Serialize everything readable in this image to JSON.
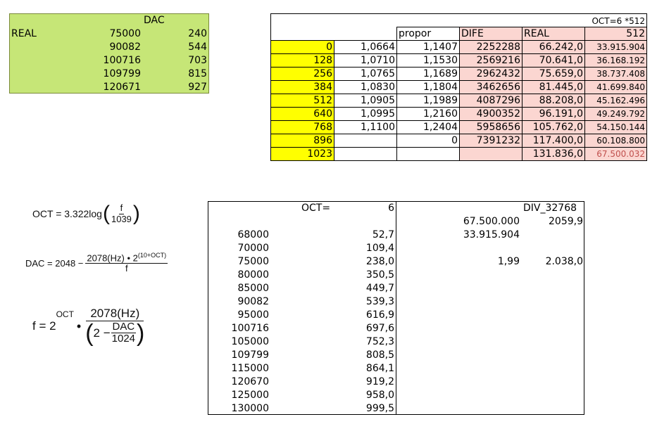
{
  "dac_table": {
    "header": "DAC",
    "row_label": "REAL",
    "rows": [
      {
        "hz": "75000",
        "dac": "240"
      },
      {
        "hz": "90082",
        "dac": "544"
      },
      {
        "hz": "100716",
        "dac": "703"
      },
      {
        "hz": "109799",
        "dac": "815"
      },
      {
        "hz": "120671",
        "dac": "927"
      }
    ]
  },
  "ratio_table": {
    "top_note": "OCT=6  *512",
    "headers": {
      "propor": "propor",
      "dife": "DIFE",
      "real": "REAL",
      "col512": "512"
    },
    "rows": [
      {
        "idx": "0",
        "a": "1,0664",
        "b": "1,1407",
        "dife": "2252288",
        "real": "66.242,0",
        "v512": "33.915.904"
      },
      {
        "idx": "128",
        "a": "1,0710",
        "b": "1,1530",
        "dife": "2569216",
        "real": "70.641,0",
        "v512": "36.168.192"
      },
      {
        "idx": "256",
        "a": "1,0765",
        "b": "1,1689",
        "dife": "2962432",
        "real": "75.659,0",
        "v512": "38.737.408"
      },
      {
        "idx": "384",
        "a": "1,0830",
        "b": "1,1804",
        "dife": "3462656",
        "real": "81.445,0",
        "v512": "41.699.840"
      },
      {
        "idx": "512",
        "a": "1,0905",
        "b": "1,1989",
        "dife": "4087296",
        "real": "88.208,0",
        "v512": "45.162.496"
      },
      {
        "idx": "640",
        "a": "1,0995",
        "b": "1,2160",
        "dife": "4900352",
        "real": "96.191,0",
        "v512": "49.249.792"
      },
      {
        "idx": "768",
        "a": "1,1100",
        "b": "1,2404",
        "dife": "5958656",
        "real": "105.762,0",
        "v512": "54.150.144"
      },
      {
        "idx": "896",
        "a": "",
        "b": "0",
        "dife": "7391232",
        "real": "117.400,0",
        "v512": "60.108.800"
      },
      {
        "idx": "1023",
        "a": "",
        "b": "",
        "dife": "",
        "real": "131.836,0",
        "v512": "67.500.032"
      }
    ]
  },
  "formulas": {
    "oct": {
      "lhs": "OCT = 3.322log",
      "num": "f",
      "den": "1039"
    },
    "dac": {
      "lhs": "DAC = 2048 −",
      "num_a": "2078(Hz) • 2",
      "num_exp": "(10+OCT)",
      "den": "f"
    },
    "f": {
      "lhs": "f = 2",
      "exp": "OCT",
      "dot": "•",
      "num": "2078(Hz)",
      "den_pre": "2 −",
      "den_num": "DAC",
      "den_den": "1024"
    }
  },
  "oct_table": {
    "oct_label": "OCT=",
    "oct_value": "6",
    "div_label": "DIV_32768",
    "side_values": [
      {
        "a": "67.500.000",
        "b": "2059,9"
      },
      {
        "a": "33.915.904",
        "b": ""
      },
      {
        "a": "1,99",
        "b": "2.038,0"
      }
    ],
    "rows": [
      {
        "hz": "68000",
        "dac": "52,7"
      },
      {
        "hz": "70000",
        "dac": "109,4"
      },
      {
        "hz": "75000",
        "dac": "238,0"
      },
      {
        "hz": "80000",
        "dac": "350,5"
      },
      {
        "hz": "85000",
        "dac": "449,7"
      },
      {
        "hz": "90082",
        "dac": "539,3"
      },
      {
        "hz": "95000",
        "dac": "616,9"
      },
      {
        "hz": "100716",
        "dac": "697,6"
      },
      {
        "hz": "105000",
        "dac": "752,3"
      },
      {
        "hz": "109799",
        "dac": "808,5"
      },
      {
        "hz": "115000",
        "dac": "864,1"
      },
      {
        "hz": "120670",
        "dac": "919,2"
      },
      {
        "hz": "125000",
        "dac": "958,0"
      },
      {
        "hz": "130000",
        "dac": "999,5"
      }
    ]
  }
}
